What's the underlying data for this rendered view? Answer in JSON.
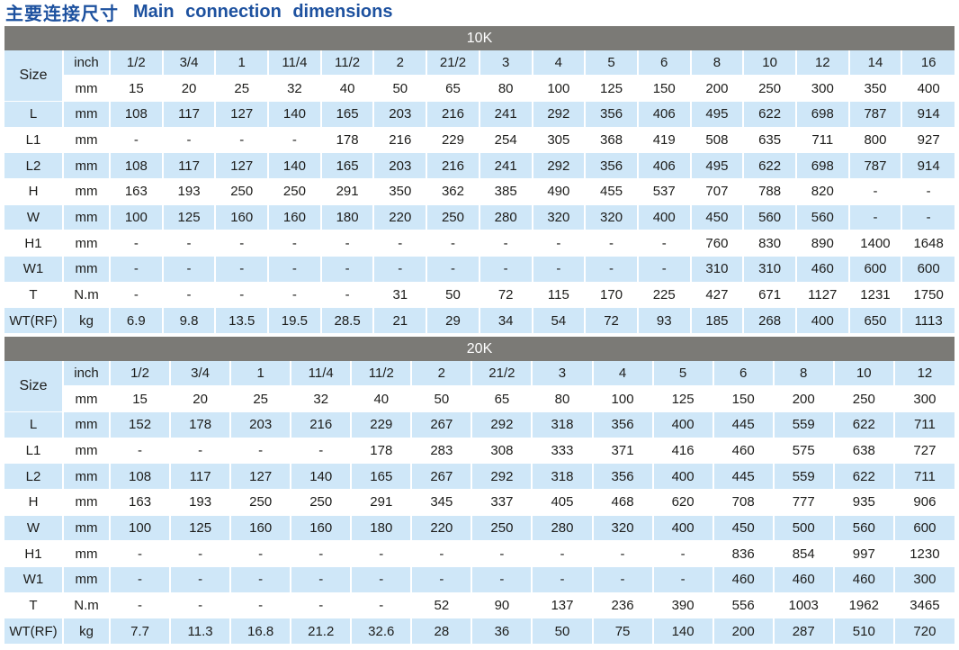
{
  "title": {
    "zh": "主要连接尺寸",
    "en": "Main connection dimensions"
  },
  "colors": {
    "accent_blue": "#1d519f",
    "band_gray": "#7b7a76",
    "row_blue": "#cfe7f8",
    "text": "#1d1d1b"
  },
  "sections": [
    {
      "label": "10K",
      "size_label": "Size",
      "unit_inch": "inch",
      "unit_mm": "mm",
      "inch": [
        "1/2",
        "3/4",
        "1",
        "11/4",
        "11/2",
        "2",
        "21/2",
        "3",
        "4",
        "5",
        "6",
        "8",
        "10",
        "12",
        "14",
        "16"
      ],
      "mm": [
        "15",
        "20",
        "25",
        "32",
        "40",
        "50",
        "65",
        "80",
        "100",
        "125",
        "150",
        "200",
        "250",
        "300",
        "350",
        "400"
      ],
      "rows": [
        {
          "label": "L",
          "unit": "mm",
          "values": [
            "108",
            "117",
            "127",
            "140",
            "165",
            "203",
            "216",
            "241",
            "292",
            "356",
            "406",
            "495",
            "622",
            "698",
            "787",
            "914"
          ]
        },
        {
          "label": "L1",
          "unit": "mm",
          "values": [
            "-",
            "-",
            "-",
            "-",
            "178",
            "216",
            "229",
            "254",
            "305",
            "368",
            "419",
            "508",
            "635",
            "711",
            "800",
            "927"
          ]
        },
        {
          "label": "L2",
          "unit": "mm",
          "values": [
            "108",
            "117",
            "127",
            "140",
            "165",
            "203",
            "216",
            "241",
            "292",
            "356",
            "406",
            "495",
            "622",
            "698",
            "787",
            "914"
          ]
        },
        {
          "label": "H",
          "unit": "mm",
          "values": [
            "163",
            "193",
            "250",
            "250",
            "291",
            "350",
            "362",
            "385",
            "490",
            "455",
            "537",
            "707",
            "788",
            "820",
            "-",
            "-"
          ]
        },
        {
          "label": "W",
          "unit": "mm",
          "values": [
            "100",
            "125",
            "160",
            "160",
            "180",
            "220",
            "250",
            "280",
            "320",
            "320",
            "400",
            "450",
            "560",
            "560",
            "-",
            "-"
          ]
        },
        {
          "label": "H1",
          "unit": "mm",
          "values": [
            "-",
            "-",
            "-",
            "-",
            "-",
            "-",
            "-",
            "-",
            "-",
            "-",
            "-",
            "760",
            "830",
            "890",
            "1400",
            "1648"
          ]
        },
        {
          "label": "W1",
          "unit": "mm",
          "values": [
            "-",
            "-",
            "-",
            "-",
            "-",
            "-",
            "-",
            "-",
            "-",
            "-",
            "-",
            "310",
            "310",
            "460",
            "600",
            "600"
          ]
        },
        {
          "label": "T",
          "unit": "N.m",
          "values": [
            "-",
            "-",
            "-",
            "-",
            "-",
            "31",
            "50",
            "72",
            "115",
            "170",
            "225",
            "427",
            "671",
            "1127",
            "1231",
            "1750"
          ]
        },
        {
          "label": "WT(RF)",
          "unit": "kg",
          "values": [
            "6.9",
            "9.8",
            "13.5",
            "19.5",
            "28.5",
            "21",
            "29",
            "34",
            "54",
            "72",
            "93",
            "185",
            "268",
            "400",
            "650",
            "1113"
          ]
        }
      ]
    },
    {
      "label": "20K",
      "size_label": "Size",
      "unit_inch": "inch",
      "unit_mm": "mm",
      "inch": [
        "1/2",
        "3/4",
        "1",
        "11/4",
        "11/2",
        "2",
        "21/2",
        "3",
        "4",
        "5",
        "6",
        "8",
        "10",
        "12"
      ],
      "mm": [
        "15",
        "20",
        "25",
        "32",
        "40",
        "50",
        "65",
        "80",
        "100",
        "125",
        "150",
        "200",
        "250",
        "300"
      ],
      "rows": [
        {
          "label": "L",
          "unit": "mm",
          "values": [
            "152",
            "178",
            "203",
            "216",
            "229",
            "267",
            "292",
            "318",
            "356",
            "400",
            "445",
            "559",
            "622",
            "711"
          ]
        },
        {
          "label": "L1",
          "unit": "mm",
          "values": [
            "-",
            "-",
            "-",
            "-",
            "178",
            "283",
            "308",
            "333",
            "371",
            "416",
            "460",
            "575",
            "638",
            "727"
          ]
        },
        {
          "label": "L2",
          "unit": "mm",
          "values": [
            "108",
            "117",
            "127",
            "140",
            "165",
            "267",
            "292",
            "318",
            "356",
            "400",
            "445",
            "559",
            "622",
            "711"
          ]
        },
        {
          "label": "H",
          "unit": "mm",
          "values": [
            "163",
            "193",
            "250",
            "250",
            "291",
            "345",
            "337",
            "405",
            "468",
            "620",
            "708",
            "777",
            "935",
            "906"
          ]
        },
        {
          "label": "W",
          "unit": "mm",
          "values": [
            "100",
            "125",
            "160",
            "160",
            "180",
            "220",
            "250",
            "280",
            "320",
            "400",
            "450",
            "500",
            "560",
            "600"
          ]
        },
        {
          "label": "H1",
          "unit": "mm",
          "values": [
            "-",
            "-",
            "-",
            "-",
            "-",
            "-",
            "-",
            "-",
            "-",
            "-",
            "836",
            "854",
            "997",
            "1230"
          ]
        },
        {
          "label": "W1",
          "unit": "mm",
          "values": [
            "-",
            "-",
            "-",
            "-",
            "-",
            "-",
            "-",
            "-",
            "-",
            "-",
            "460",
            "460",
            "460",
            "300"
          ]
        },
        {
          "label": "T",
          "unit": "N.m",
          "values": [
            "-",
            "-",
            "-",
            "-",
            "-",
            "52",
            "90",
            "137",
            "236",
            "390",
            "556",
            "1003",
            "1962",
            "3465"
          ]
        },
        {
          "label": "WT(RF)",
          "unit": "kg",
          "values": [
            "7.7",
            "11.3",
            "16.8",
            "21.2",
            "32.6",
            "28",
            "36",
            "50",
            "75",
            "140",
            "200",
            "287",
            "510",
            "720"
          ]
        }
      ]
    }
  ]
}
